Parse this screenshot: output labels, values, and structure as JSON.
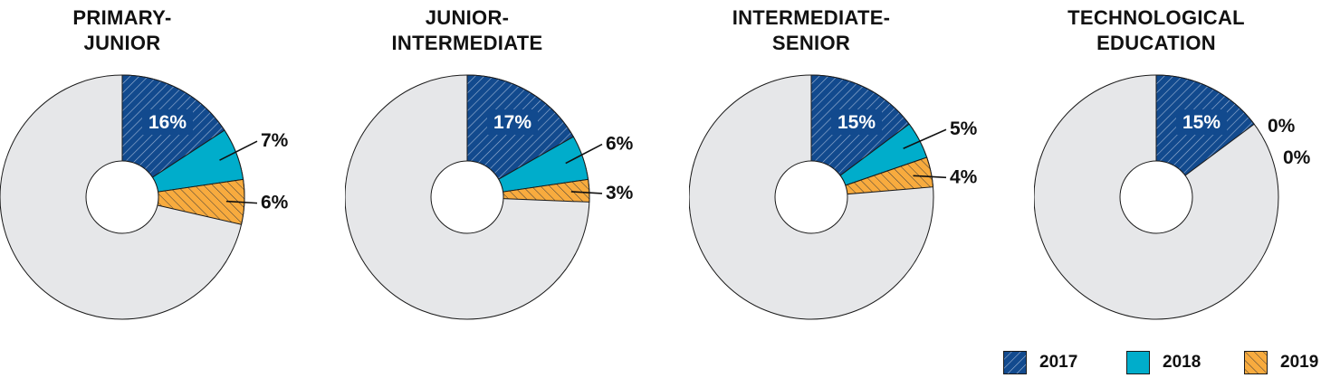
{
  "colors": {
    "y2017": "#124a8e",
    "y2018": "#00adcb",
    "y2019": "#f8ab3e",
    "rest": "#e6e7e9",
    "stroke": "#1a1a1a"
  },
  "legend": [
    {
      "label": "2017",
      "key": "y2017"
    },
    {
      "label": "2018",
      "key": "y2018"
    },
    {
      "label": "2019",
      "key": "y2019"
    }
  ],
  "chart_data": [
    {
      "type": "pie",
      "title": "PRIMARY-JUNIOR",
      "title_lines": [
        "PRIMARY-",
        "JUNIOR"
      ],
      "categories": [
        "2017",
        "2018",
        "2019"
      ],
      "values": [
        16,
        7,
        6
      ],
      "labels": [
        "16%",
        "7%",
        "6%"
      ]
    },
    {
      "type": "pie",
      "title": "JUNIOR-INTERMEDIATE",
      "title_lines": [
        "JUNIOR-",
        "INTERMEDIATE"
      ],
      "categories": [
        "2017",
        "2018",
        "2019"
      ],
      "values": [
        17,
        6,
        3
      ],
      "labels": [
        "17%",
        "6%",
        "3%"
      ]
    },
    {
      "type": "pie",
      "title": "INTERMEDIATE-SENIOR",
      "title_lines": [
        "INTERMEDIATE-",
        "SENIOR"
      ],
      "categories": [
        "2017",
        "2018",
        "2019"
      ],
      "values": [
        15,
        5,
        4
      ],
      "labels": [
        "15%",
        "5%",
        "4%"
      ]
    },
    {
      "type": "pie",
      "title": "TECHNOLOGICAL EDUCATION",
      "title_lines": [
        "TECHNOLOGICAL",
        "EDUCATION"
      ],
      "categories": [
        "2017",
        "2018",
        "2019"
      ],
      "values": [
        15,
        0,
        0
      ],
      "labels": [
        "15%",
        "0%",
        "0%"
      ]
    }
  ]
}
